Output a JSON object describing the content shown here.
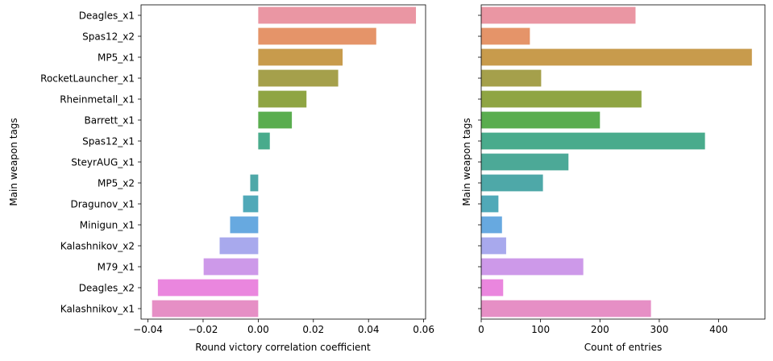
{
  "chart_data": [
    {
      "type": "bar",
      "orientation": "horizontal",
      "xlabel": "Round victory correlation coefficient",
      "ylabel": "Main weapon tags",
      "xlim": [
        -0.0425,
        0.0607
      ],
      "xticks": [
        -0.04,
        -0.02,
        0.0,
        0.02,
        0.04,
        0.06
      ],
      "xtick_labels": [
        "−0.04",
        "−0.02",
        "0.00",
        "0.02",
        "0.04",
        "0.06"
      ],
      "categories": [
        "Deagles_x1",
        "Spas12_x2",
        "MP5_x1",
        "RocketLauncher_x1",
        "Rheinmetall_x1",
        "Barrett_x1",
        "Spas12_x1",
        "SteyrAUG_x1",
        "MP5_x2",
        "Dragunov_x1",
        "Minigun_x1",
        "Kalashnikov_x2",
        "M79_x1",
        "Deagles_x2",
        "Kalashnikov_x1"
      ],
      "values": [
        0.0572,
        0.0428,
        0.0306,
        0.029,
        0.0175,
        0.0122,
        0.0042,
        0.0,
        -0.0029,
        -0.0055,
        -0.0102,
        -0.014,
        -0.0198,
        -0.0364,
        -0.0385
      ],
      "grid": false,
      "show_ytick_labels": true
    },
    {
      "type": "bar",
      "orientation": "horizontal",
      "xlabel": "Count of entries",
      "ylabel": "Main weapon tags",
      "xlim": [
        0,
        478
      ],
      "xticks": [
        0,
        100,
        200,
        300,
        400
      ],
      "xtick_labels": [
        "0",
        "100",
        "200",
        "300",
        "400"
      ],
      "categories": [
        "Deagles_x1",
        "Spas12_x2",
        "MP5_x1",
        "RocketLauncher_x1",
        "Rheinmetall_x1",
        "Barrett_x1",
        "Spas12_x1",
        "SteyrAUG_x1",
        "MP5_x2",
        "Dragunov_x1",
        "Minigun_x1",
        "Kalashnikov_x2",
        "M79_x1",
        "Deagles_x2",
        "Kalashnikov_x1"
      ],
      "values": [
        260,
        82,
        456,
        101,
        270,
        200,
        377,
        147,
        104,
        29,
        35,
        42,
        172,
        37,
        286
      ],
      "grid": false,
      "show_ytick_labels": false
    }
  ],
  "colors": [
    "#ea96a3",
    "#e59469",
    "#c89b4c",
    "#a5a04b",
    "#8fa543",
    "#5aad4f",
    "#49ab8c",
    "#4ca997",
    "#4ea8a8",
    "#50a9b8",
    "#67a9e0",
    "#a8a9ed",
    "#cd99e9",
    "#ea86de",
    "#e68fc5"
  ]
}
